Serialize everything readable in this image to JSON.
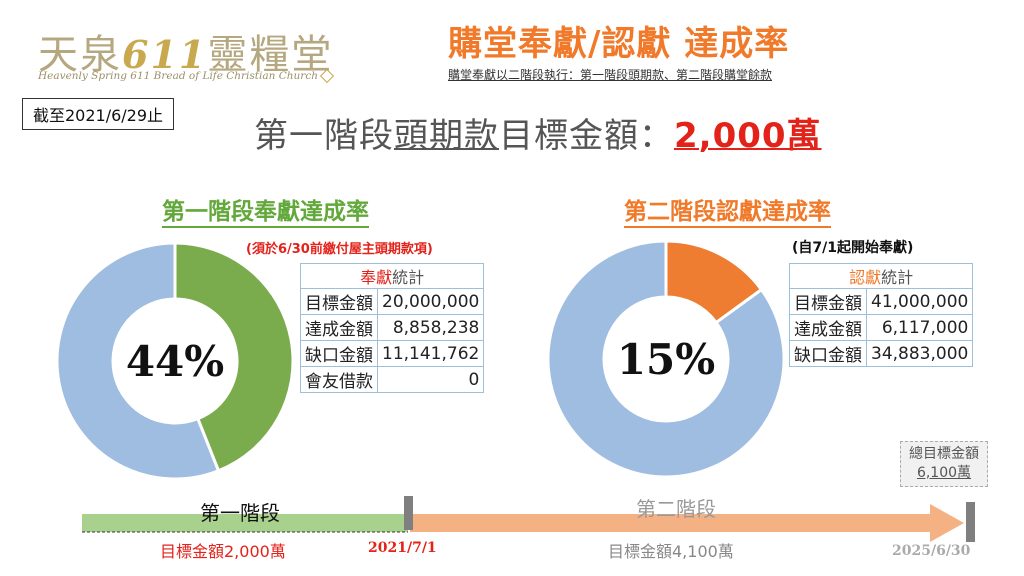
{
  "logo": {
    "cn_a": "天泉",
    "cn_num": "611",
    "cn_b": "靈糧堂",
    "en": "Heavenly Spring 611 Bread of Life Christian Church"
  },
  "header": {
    "title": "購堂奉獻/認獻 達成率",
    "subtitle": "購堂奉獻以二階段執行：第一階段頭期款、第二階段購堂餘款",
    "date_label": "截至2021/6/29止",
    "target_a": "第一階段",
    "target_b": "頭期款",
    "target_c": "目標金額：",
    "target_amount": "2,000萬"
  },
  "colors": {
    "green": "#7aac4d",
    "blue": "#9ebde0",
    "orange": "#f07a2a",
    "red": "#e3221a"
  },
  "stage1": {
    "title": "第一階段奉獻達成率",
    "note": "(須於6/30前繳付屋主頭期款項)",
    "table_header_a": "奉獻",
    "table_header_b": "統計",
    "rows": [
      {
        "label": "目標金額",
        "value": "20,000,000"
      },
      {
        "label": "達成金額",
        "value": "8,858,238"
      },
      {
        "label": "缺口金額",
        "value": "11,141,762"
      },
      {
        "label": "會友借款",
        "value": "0"
      }
    ]
  },
  "stage2": {
    "title": "第二階段認獻達成率",
    "note": "(自7/1起開始奉獻)",
    "table_header_a": "認獻",
    "table_header_b": "統計",
    "rows": [
      {
        "label": "目標金額",
        "value": "41,000,000"
      },
      {
        "label": "達成金額",
        "value": "6,117,000"
      },
      {
        "label": "缺口金額",
        "value": "34,883,000"
      }
    ]
  },
  "chart_data": [
    {
      "type": "pie",
      "title": "第一階段奉獻達成率",
      "center_label": "44%",
      "slices": [
        {
          "label": "達成金額",
          "value": 44,
          "color": "#7aac4d"
        },
        {
          "label": "缺口金額",
          "value": 56,
          "color": "#9ebde0"
        }
      ]
    },
    {
      "type": "pie",
      "title": "第二階段認獻達成率",
      "center_label": "15%",
      "slices": [
        {
          "label": "達成金額",
          "value": 15,
          "color": "#ee7d31"
        },
        {
          "label": "缺口金額",
          "value": 85,
          "color": "#9ebde0"
        }
      ]
    }
  ],
  "timeline": {
    "stage1_label": "第一階段",
    "stage1_goal": "目標金額2,000萬",
    "stage2_label": "第二階段",
    "stage2_goal": "目標金額4,100萬",
    "date1": "2021/7/1",
    "date2": "2025/6/30",
    "total_label": "總目標金額",
    "total_amount": "6,100萬"
  }
}
